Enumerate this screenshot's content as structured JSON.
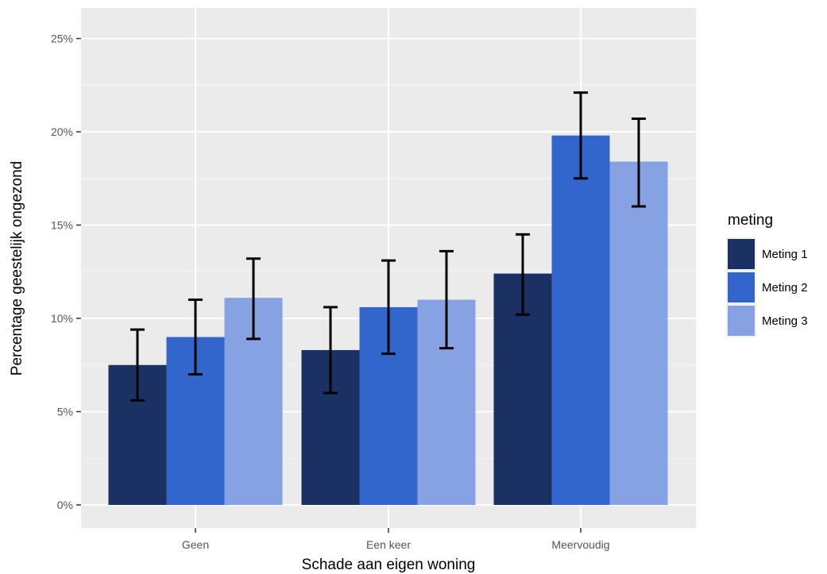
{
  "chart_data": {
    "type": "bar",
    "categories": [
      "Geen",
      "Een keer",
      "Meervoudig"
    ],
    "series": [
      {
        "name": "Meting 1",
        "color": "#1b3163",
        "values": [
          7.5,
          8.3,
          12.4
        ],
        "ci_low": [
          5.6,
          6.0,
          10.2
        ],
        "ci_high": [
          9.4,
          10.6,
          14.5
        ]
      },
      {
        "name": "Meting 2",
        "color": "#3366cc",
        "values": [
          9.0,
          10.6,
          19.8
        ],
        "ci_low": [
          7.0,
          8.1,
          17.5
        ],
        "ci_high": [
          11.0,
          13.1,
          22.1
        ]
      },
      {
        "name": "Meting 3",
        "color": "#87a2e2",
        "values": [
          11.1,
          11.0,
          18.4
        ],
        "ci_low": [
          8.9,
          8.4,
          16.0
        ],
        "ci_high": [
          13.2,
          13.6,
          20.7
        ]
      }
    ],
    "ylim": [
      0,
      25
    ],
    "yticks": [
      "0%",
      "5%",
      "10%",
      "15%",
      "20%",
      "25%"
    ],
    "ytick_values": [
      0,
      5,
      10,
      15,
      20,
      25
    ],
    "xlabel": "Schade aan eigen woning",
    "ylabel": "Percentage geestelijk ongezond",
    "legend_title": "meting",
    "legend_position": "right",
    "grid": true,
    "panel_background": "#ebebeb",
    "error_bars": true
  }
}
